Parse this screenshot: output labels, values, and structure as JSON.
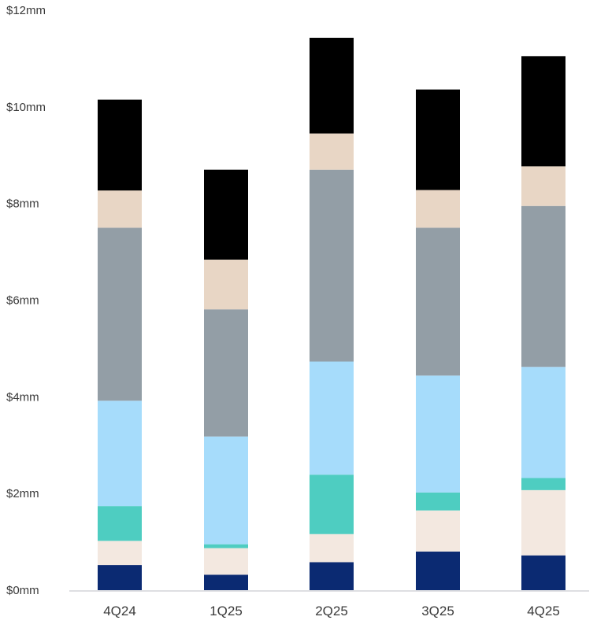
{
  "chart_data": {
    "type": "bar",
    "stacked": true,
    "title": "",
    "xlabel": "",
    "ylabel": "",
    "ylim": [
      0,
      12
    ],
    "y_ticks": [
      {
        "value": 0,
        "label": "$0mm"
      },
      {
        "value": 2,
        "label": "$2mm"
      },
      {
        "value": 4,
        "label": "$4mm"
      },
      {
        "value": 6,
        "label": "$6mm"
      },
      {
        "value": 8,
        "label": "$8mm"
      },
      {
        "value": 10,
        "label": "$10mm"
      },
      {
        "value": 12,
        "label": "$12mm"
      }
    ],
    "grid": false,
    "legend": "none",
    "categories": [
      "4Q24",
      "1Q25",
      "2Q25",
      "3Q25",
      "4Q25"
    ],
    "series": [
      {
        "color": "#0b2a72",
        "values": [
          0.52,
          0.32,
          0.58,
          0.8,
          0.72
        ]
      },
      {
        "color": "#f3e8e0",
        "values": [
          0.5,
          0.55,
          0.58,
          0.85,
          1.35
        ]
      },
      {
        "color": "#4ecdc1",
        "values": [
          0.72,
          0.08,
          1.23,
          0.37,
          0.25
        ]
      },
      {
        "color": "#a6dcfb",
        "values": [
          2.18,
          2.23,
          2.34,
          2.42,
          2.3
        ]
      },
      {
        "color": "#939ea6",
        "values": [
          3.58,
          2.63,
          3.97,
          3.06,
          3.33
        ]
      },
      {
        "color": "#e8d6c5",
        "values": [
          0.77,
          1.03,
          0.75,
          0.78,
          0.82
        ]
      },
      {
        "color": "#000000",
        "values": [
          1.88,
          1.86,
          1.98,
          2.08,
          2.28
        ]
      }
    ]
  }
}
